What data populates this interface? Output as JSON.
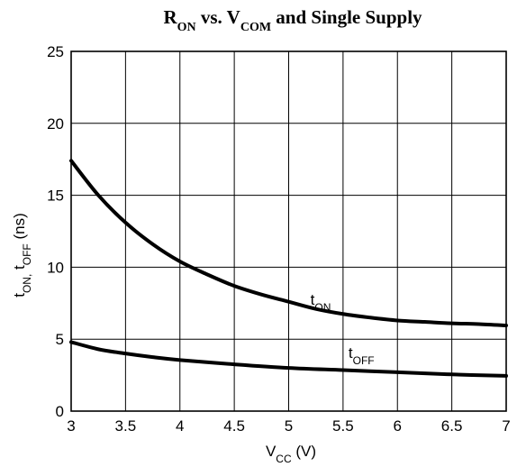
{
  "chart_data": {
    "type": "line",
    "title": {
      "parts": [
        {
          "text": "R",
          "sub": "ON"
        },
        {
          "text": "  vs. V",
          "sub": "COM"
        },
        {
          "text": "  and Single Supply",
          "sub": ""
        }
      ]
    },
    "xlabel": {
      "parts": [
        {
          "text": "V",
          "sub": "CC"
        },
        {
          "text": "  (V)",
          "sub": ""
        }
      ]
    },
    "ylabel": {
      "parts": [
        {
          "text": "t",
          "sub": "ON,"
        },
        {
          "text": " t",
          "sub": "OFF"
        },
        {
          "text": "  (ns)",
          "sub": ""
        }
      ]
    },
    "xlim": [
      3,
      7
    ],
    "ylim": [
      0,
      25
    ],
    "x_ticks": [
      3,
      3.5,
      4,
      4.5,
      5,
      5.5,
      6,
      6.5,
      7
    ],
    "x_tick_labels": [
      "3",
      "3.5",
      "4",
      "4.5",
      "5",
      "5.5",
      "6",
      "6.5",
      "7"
    ],
    "y_ticks": [
      0,
      5,
      10,
      15,
      20,
      25
    ],
    "y_tick_labels": [
      "0",
      "5",
      "10",
      "15",
      "20",
      "25"
    ],
    "grid": true,
    "series": [
      {
        "name": {
          "text": "t",
          "sub": "ON"
        },
        "label_at": [
          5.2,
          7.4
        ],
        "x": [
          3.0,
          3.25,
          3.5,
          3.75,
          4.0,
          4.25,
          4.5,
          4.75,
          5.0,
          5.25,
          5.5,
          5.75,
          6.0,
          6.25,
          6.5,
          6.75,
          7.0
        ],
        "y": [
          17.4,
          15.0,
          13.1,
          11.6,
          10.4,
          9.5,
          8.7,
          8.1,
          7.6,
          7.1,
          6.75,
          6.5,
          6.3,
          6.2,
          6.1,
          6.05,
          5.95
        ]
      },
      {
        "name": {
          "text": "t",
          "sub": "OFF"
        },
        "label_at": [
          5.55,
          3.7
        ],
        "x": [
          3.0,
          3.25,
          3.5,
          3.75,
          4.0,
          4.5,
          5.0,
          5.5,
          6.0,
          6.5,
          7.0
        ],
        "y": [
          4.8,
          4.3,
          4.0,
          3.75,
          3.55,
          3.25,
          3.0,
          2.85,
          2.7,
          2.55,
          2.45
        ]
      }
    ]
  }
}
